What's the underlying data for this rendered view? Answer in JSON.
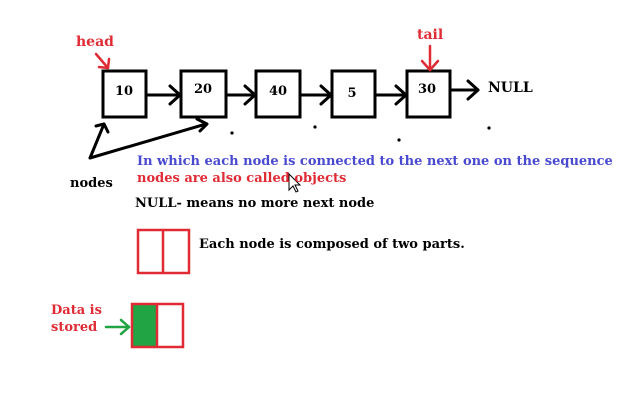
{
  "labels": {
    "head": "head",
    "tail": "tail",
    "null_end": "NULL",
    "nodes": "nodes",
    "data_is_stored": [
      "Data is",
      "stored"
    ]
  },
  "nodes": [
    "10",
    "20",
    "40",
    "5",
    "30"
  ],
  "sentences": {
    "line1": "In which each node is connected to the next one on the sequence",
    "line2": "nodes are also called objects",
    "null_def": "NULL- means no more next node",
    "composed": "Each node is composed of two parts."
  },
  "colors": {
    "red": "#e02b35",
    "blue": "#4a4ad0",
    "green": "#21a443",
    "black": "#000000"
  }
}
